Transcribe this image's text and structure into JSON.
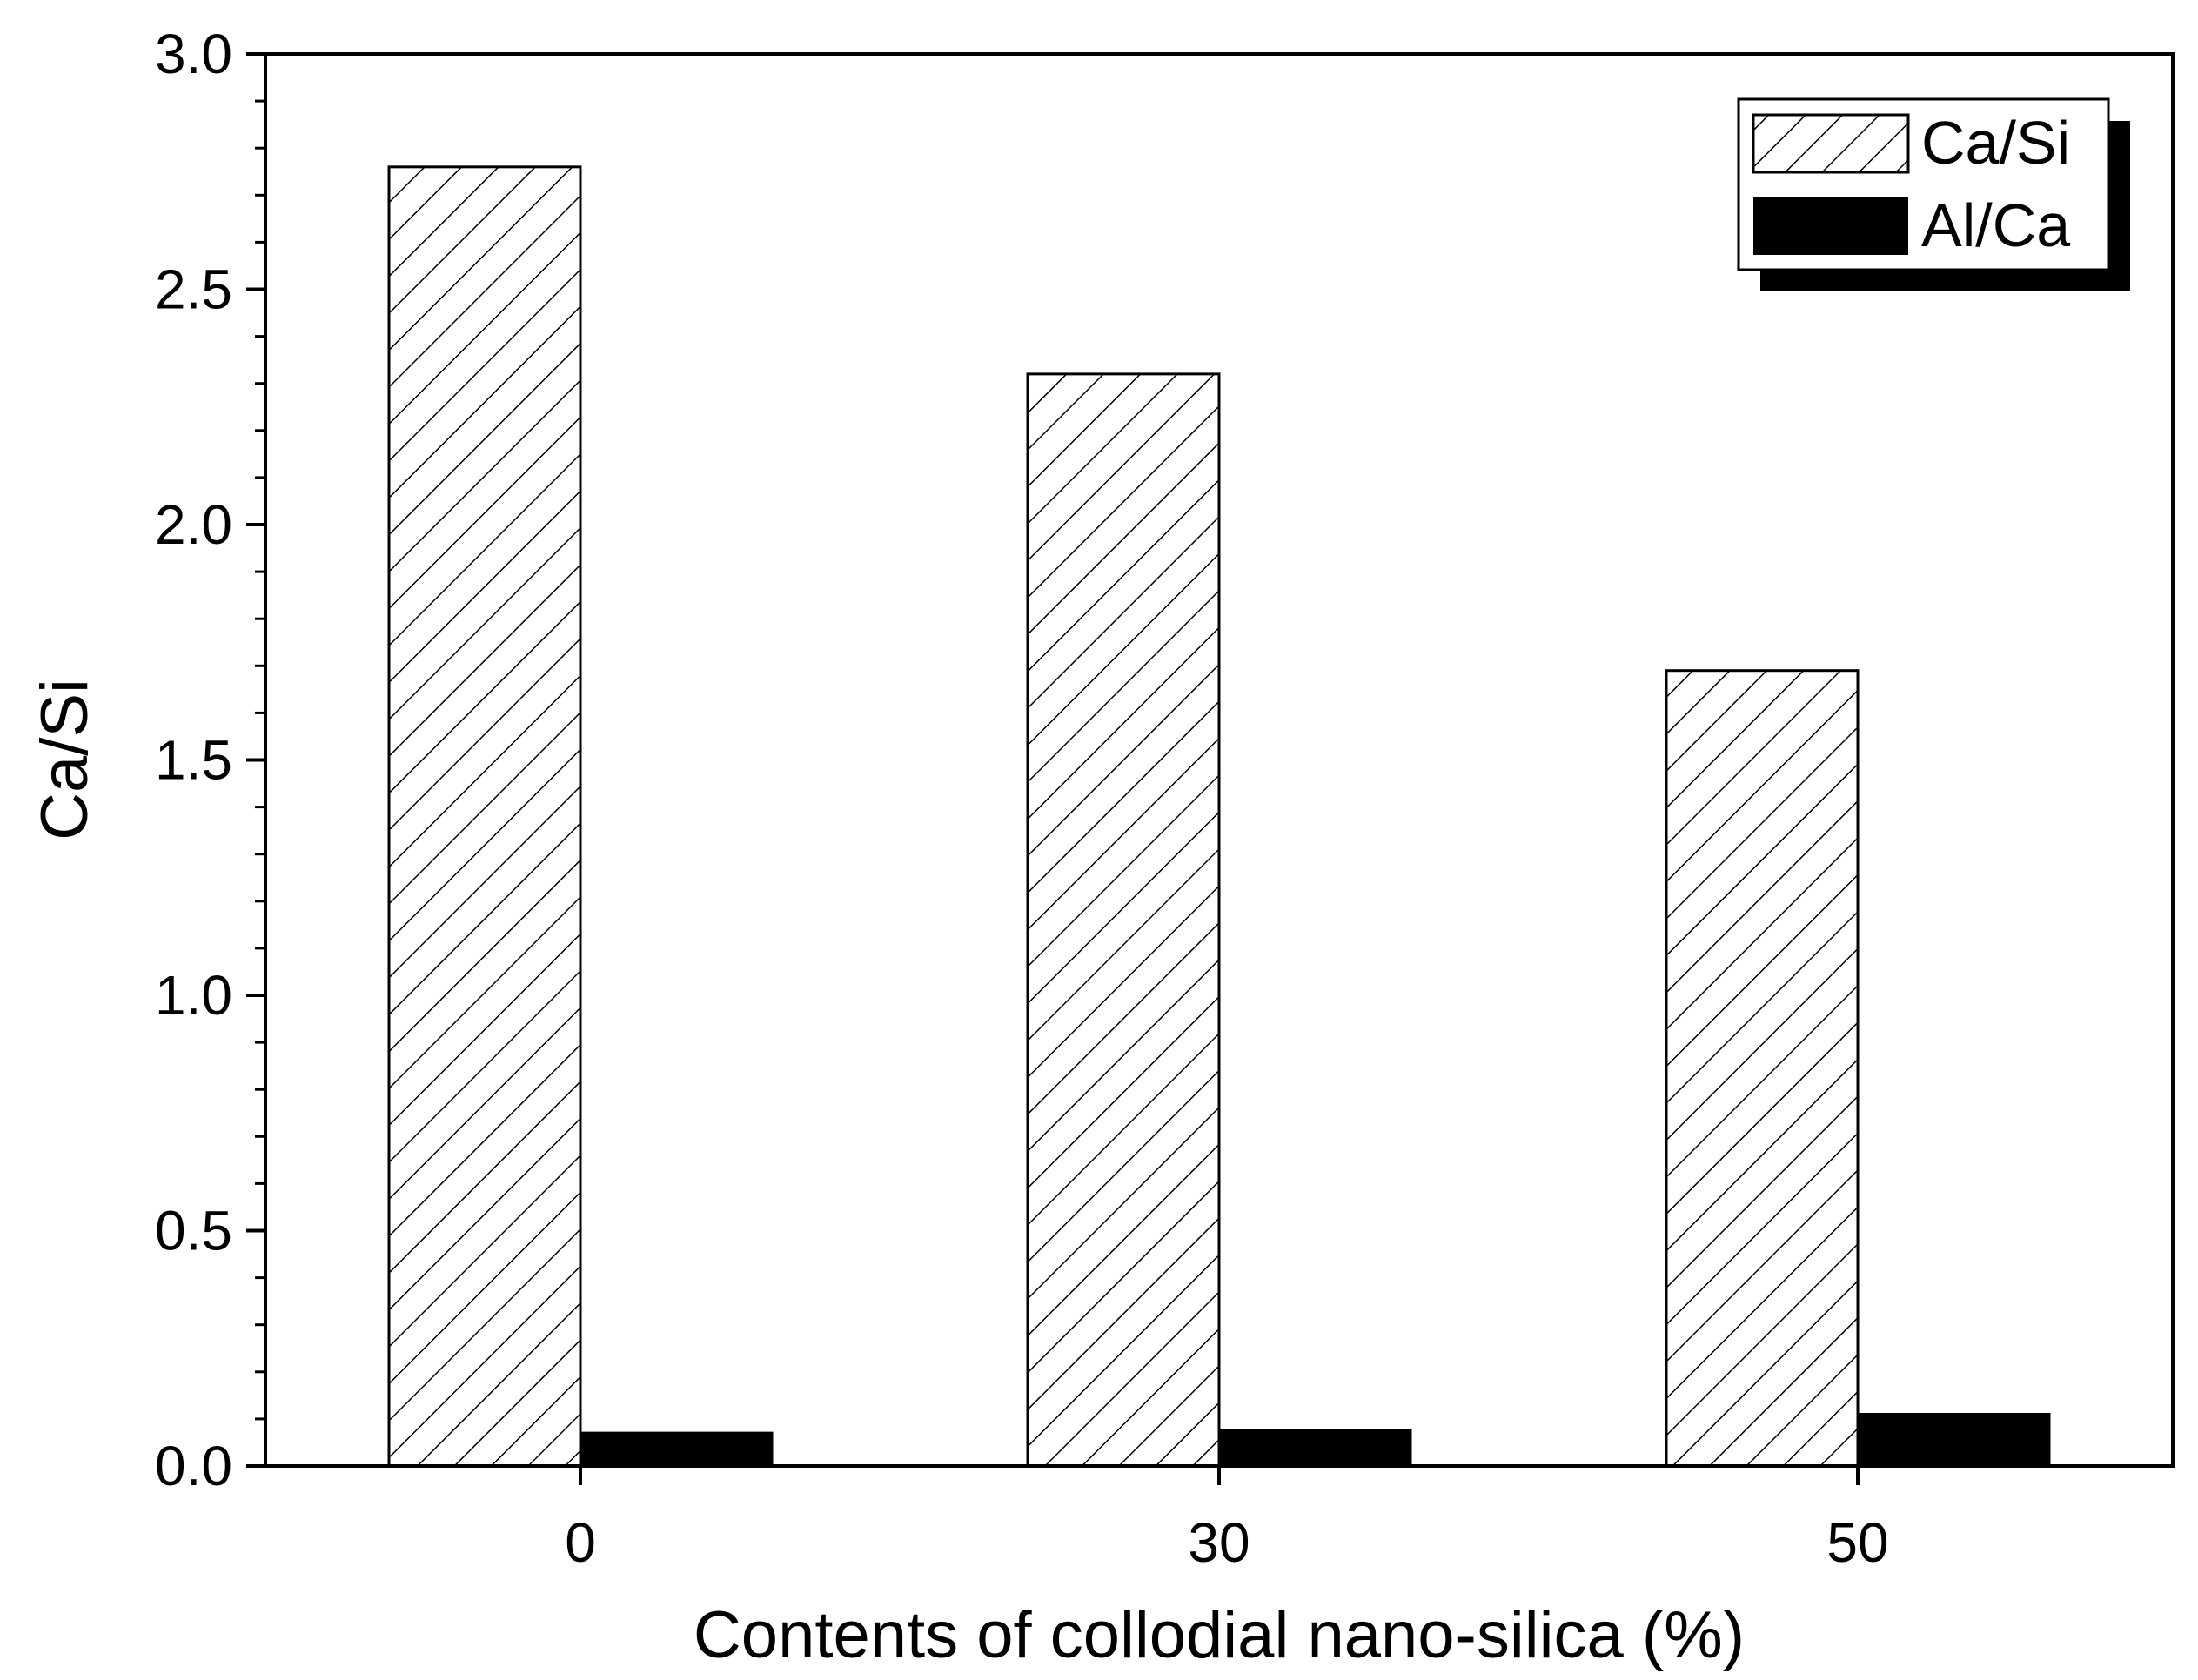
{
  "chart_data": {
    "type": "bar",
    "categories": [
      "0",
      "30",
      "50"
    ],
    "series": [
      {
        "name": "Ca/Si",
        "values": [
          2.76,
          2.32,
          1.69
        ],
        "fill": "hatch"
      },
      {
        "name": "Al/Ca",
        "values": [
          0.07,
          0.075,
          0.11
        ],
        "fill": "solid"
      }
    ],
    "xlabel": "Contents of collodial nano-silica (%)",
    "ylabel": "Ca/Si",
    "ylim": [
      0,
      3.0
    ],
    "yticks": [
      "0.0",
      "0.5",
      "1.0",
      "1.5",
      "2.0",
      "2.5",
      "3.0"
    ],
    "grid": false,
    "legend_position": "top-right",
    "colors": {
      "bar_edge": "#000000",
      "solid_fill": "#000000",
      "hatch_fill": "#ffffff"
    }
  }
}
